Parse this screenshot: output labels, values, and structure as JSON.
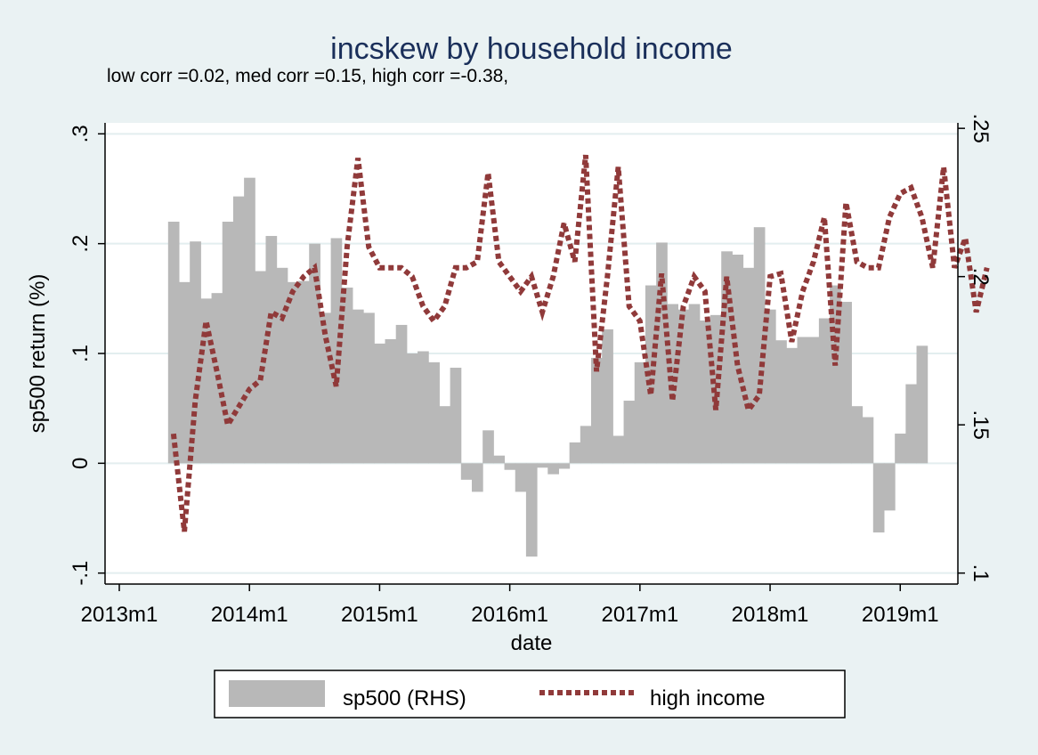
{
  "chart_data": {
    "type": "bar+line",
    "title": "incskew by household income",
    "subtitle": "low corr =0.02, med corr =0.15, high corr =-0.38,",
    "xlabel": "date",
    "ylabel": "sp500 return (%)",
    "y_right_label": "",
    "x_ticks": [
      "2013m1",
      "2014m1",
      "2015m1",
      "2016m1",
      "2017m1",
      "2018m1",
      "2019m1"
    ],
    "y_left_ticks": [
      -0.1,
      0,
      0.1,
      0.2,
      0.3
    ],
    "y_left_tick_labels": [
      "-.1",
      "0",
      ".1",
      ".2",
      ".3"
    ],
    "y_right_ticks": [
      0.1,
      0.15,
      0.2,
      0.25
    ],
    "y_right_tick_labels": [
      ".1",
      ".15",
      ".2",
      ".25"
    ],
    "xlim": [
      "2013m1",
      "2019m5"
    ],
    "ylim_left": [
      -0.11,
      0.31
    ],
    "ylim_right": [
      0.1,
      0.25
    ],
    "grid": true,
    "legend_position": "bottom",
    "legend": [
      {
        "label": "sp500 (RHS)",
        "style": "bar",
        "color": "#b8b8b8"
      },
      {
        "label": "high income",
        "style": "dotted-line",
        "color": "#903a3a"
      }
    ],
    "colors": {
      "bars": "#b8b8b8",
      "line": "#903a3a",
      "title": "#1a2f5a",
      "background": "#eaf2f3",
      "plot_area": "#ffffff"
    },
    "x_start": "2013m6",
    "bars_left_scale": [
      0.22,
      0.165,
      0.202,
      0.15,
      0.155,
      0.22,
      0.243,
      0.26,
      0.175,
      0.207,
      0.178,
      0.165,
      0.166,
      0.2,
      0.137,
      0.205,
      0.16,
      0.14,
      0.137,
      0.109,
      0.113,
      0.126,
      0.1,
      0.102,
      0.092,
      0.052,
      0.087,
      -0.015,
      -0.026,
      0.03,
      0.007,
      -0.006,
      -0.026,
      -0.085,
      -0.004,
      -0.01,
      -0.005,
      0.019,
      0.034,
      0.096,
      0.122,
      0.025,
      0.057,
      0.092,
      0.162,
      0.201,
      0.145,
      0.14,
      0.145,
      0.13,
      0.135,
      0.193,
      0.19,
      0.178,
      0.215,
      0.14,
      0.112,
      0.105,
      0.115,
      0.115,
      0.132,
      0.162,
      0.147,
      0.052,
      0.042,
      -0.063,
      -0.043,
      0.027,
      0.072,
      0.107
    ],
    "high_income": [
      0.147,
      0.114,
      0.158,
      0.185,
      0.168,
      0.15,
      0.156,
      0.162,
      0.165,
      0.188,
      0.186,
      0.195,
      0.2,
      0.203,
      0.18,
      0.163,
      0.21,
      0.24,
      0.21,
      0.203,
      0.203,
      0.203,
      0.2,
      0.19,
      0.185,
      0.19,
      0.203,
      0.203,
      0.205,
      0.235,
      0.205,
      0.2,
      0.195,
      0.2,
      0.188,
      0.2,
      0.218,
      0.205,
      0.241,
      0.168,
      0.2,
      0.237,
      0.19,
      0.185,
      0.16,
      0.201,
      0.158,
      0.19,
      0.2,
      0.195,
      0.155,
      0.2,
      0.17,
      0.155,
      0.16,
      0.2,
      0.201,
      0.178,
      0.195,
      0.205,
      0.22,
      0.17,
      0.225,
      0.205,
      0.203,
      0.203,
      0.22,
      0.228,
      0.23,
      0.22,
      0.203,
      0.237,
      0.203,
      0.213,
      0.188,
      0.203
    ]
  }
}
